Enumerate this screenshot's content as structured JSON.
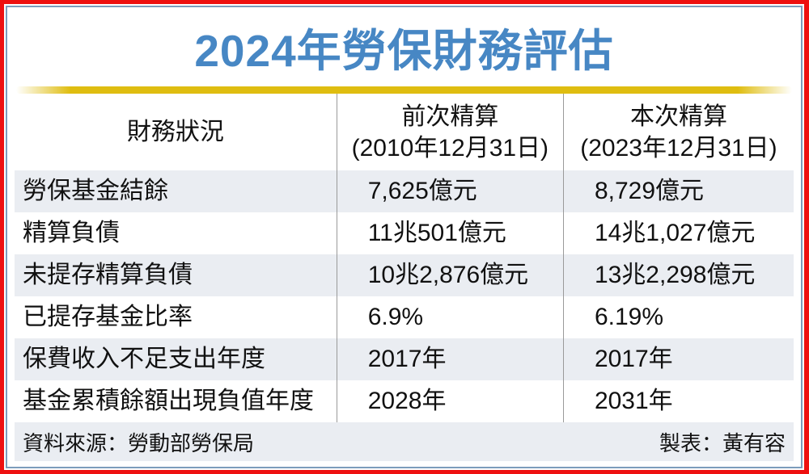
{
  "title": "2024年勞保財務評估",
  "table": {
    "columns": [
      {
        "label": "財務狀況",
        "sublabel": ""
      },
      {
        "label": "前次精算",
        "sublabel": "(2010年12月31日)"
      },
      {
        "label": "本次精算",
        "sublabel": "(2023年12月31日)"
      }
    ],
    "rows": [
      {
        "label": "勞保基金結餘",
        "previous": "7,625億元",
        "current": "8,729億元"
      },
      {
        "label": "精算負債",
        "previous": "11兆501億元",
        "current": "14兆1,027億元"
      },
      {
        "label": "未提存精算負債",
        "previous": "10兆2,876億元",
        "current": "13兆2,298億元"
      },
      {
        "label": "已提存基金比率",
        "previous": "6.9%",
        "current": "6.19%"
      },
      {
        "label": "保費收入不足支出年度",
        "previous": "2017年",
        "current": "2017年"
      },
      {
        "label": "基金累積餘額出現負值年度",
        "previous": "2028年",
        "current": "2031年"
      }
    ]
  },
  "footer": {
    "source": "資料來源：勞動部勞保局",
    "credit": "製表：黃有容"
  },
  "colors": {
    "title_blue": "#4787c4",
    "frame_red": "#ee1010",
    "frame_blue": "#7c9cbc",
    "gold_bar": "#dfbd10",
    "row_alt_bg": "#eaedf2",
    "footer_bg": "#eaedf2",
    "divider_gray": "#9a9a9a"
  },
  "chart_data": {
    "type": "table",
    "title": "2024年勞保財務評估",
    "columns": [
      "財務狀況",
      "前次精算 (2010年12月31日)",
      "本次精算 (2023年12月31日)"
    ],
    "rows": [
      [
        "勞保基金結餘",
        "7,625億元",
        "8,729億元"
      ],
      [
        "精算負債",
        "11兆501億元",
        "14兆1,027億元"
      ],
      [
        "未提存精算負債",
        "10兆2,876億元",
        "13兆2,298億元"
      ],
      [
        "已提存基金比率",
        "6.9%",
        "6.19%"
      ],
      [
        "保費收入不足支出年度",
        "2017年",
        "2017年"
      ],
      [
        "基金累積餘額出現負值年度",
        "2028年",
        "2031年"
      ]
    ],
    "source": "資料來源：勞動部勞保局",
    "credit": "製表：黃有容"
  }
}
